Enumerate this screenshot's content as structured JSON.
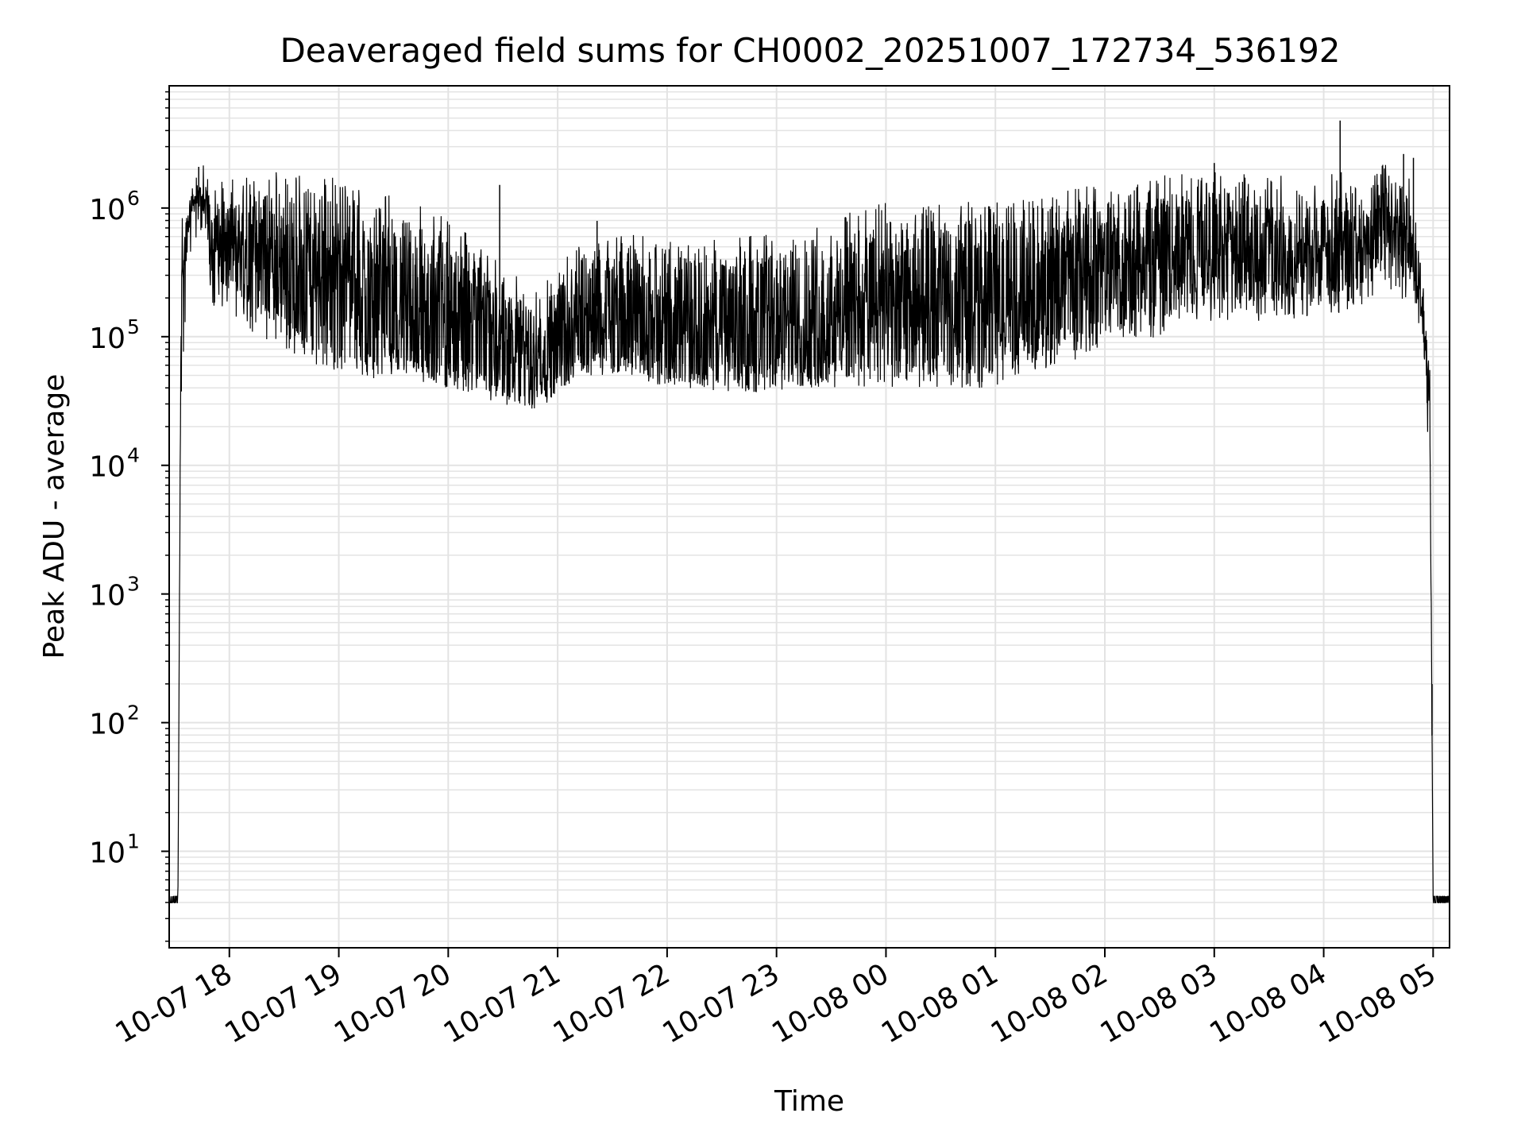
{
  "chart_data": {
    "type": "line",
    "title": "Deaveraged field sums for CH0002_20251007_172734_536192",
    "xlabel": "Time",
    "ylabel": "Peak ADU - average",
    "yscale": "log",
    "ylim_exp": [
      0.25,
      6.95
    ],
    "x_range_hours": [
      17.45,
      29.15
    ],
    "x_ticks": [
      {
        "label": "10-07 18",
        "hour": 18
      },
      {
        "label": "10-07 19",
        "hour": 19
      },
      {
        "label": "10-07 20",
        "hour": 20
      },
      {
        "label": "10-07 21",
        "hour": 21
      },
      {
        "label": "10-07 22",
        "hour": 22
      },
      {
        "label": "10-07 23",
        "hour": 23
      },
      {
        "label": "10-08 00",
        "hour": 24
      },
      {
        "label": "10-08 01",
        "hour": 25
      },
      {
        "label": "10-08 02",
        "hour": 26
      },
      {
        "label": "10-08 03",
        "hour": 27
      },
      {
        "label": "10-08 04",
        "hour": 28
      },
      {
        "label": "10-08 05",
        "hour": 29
      }
    ],
    "y_ticks": [
      {
        "base": "10",
        "exp": "1",
        "value": 1
      },
      {
        "base": "10",
        "exp": "2",
        "value": 2
      },
      {
        "base": "10",
        "exp": "3",
        "value": 3
      },
      {
        "base": "10",
        "exp": "4",
        "value": 4
      },
      {
        "base": "10",
        "exp": "5",
        "value": 5
      },
      {
        "base": "10",
        "exp": "6",
        "value": 6
      }
    ],
    "grid": true,
    "line_color": "#000000",
    "grid_color": "#e3e3e3",
    "series": [
      {
        "name": "field sums",
        "envelope_log10": [
          {
            "hour": 17.45,
            "floor": 0.6,
            "mean": 0.6,
            "spread": 0.0
          },
          {
            "hour": 17.53,
            "floor": 0.6,
            "mean": 0.6,
            "spread": 0.0
          },
          {
            "hour": 17.56,
            "floor": 4.5,
            "mean": 5.5,
            "spread": 0.3
          },
          {
            "hour": 17.65,
            "floor": 5.6,
            "mean": 6.05,
            "spread": 0.1
          },
          {
            "hour": 17.75,
            "floor": 5.8,
            "mean": 6.1,
            "spread": 0.1
          },
          {
            "hour": 17.85,
            "floor": 5.2,
            "mean": 5.75,
            "spread": 0.3
          },
          {
            "hour": 18.5,
            "floor": 4.9,
            "mean": 5.6,
            "spread": 0.55
          },
          {
            "hour": 19.0,
            "floor": 4.7,
            "mean": 5.5,
            "spread": 0.6
          },
          {
            "hour": 20.0,
            "floor": 4.6,
            "mean": 5.2,
            "spread": 0.6
          },
          {
            "hour": 20.8,
            "floor": 4.45,
            "mean": 4.8,
            "spread": 0.4
          },
          {
            "hour": 21.3,
            "floor": 4.7,
            "mean": 5.25,
            "spread": 0.45
          },
          {
            "hour": 22.0,
            "floor": 4.6,
            "mean": 5.1,
            "spread": 0.5
          },
          {
            "hour": 23.0,
            "floor": 4.6,
            "mean": 5.1,
            "spread": 0.55
          },
          {
            "hour": 24.0,
            "floor": 4.6,
            "mean": 5.3,
            "spread": 0.6
          },
          {
            "hour": 25.0,
            "floor": 4.6,
            "mean": 5.3,
            "spread": 0.6
          },
          {
            "hour": 26.0,
            "floor": 4.9,
            "mean": 5.55,
            "spread": 0.5
          },
          {
            "hour": 27.0,
            "floor": 5.1,
            "mean": 5.7,
            "spread": 0.45
          },
          {
            "hour": 28.0,
            "floor": 5.15,
            "mean": 5.7,
            "spread": 0.4
          },
          {
            "hour": 28.75,
            "floor": 5.3,
            "mean": 5.9,
            "spread": 0.35
          },
          {
            "hour": 28.88,
            "floor": 5.0,
            "mean": 5.4,
            "spread": 0.2
          },
          {
            "hour": 28.97,
            "floor": 4.0,
            "mean": 4.5,
            "spread": 0.2
          },
          {
            "hour": 29.0,
            "floor": 0.6,
            "mean": 0.6,
            "spread": 0.0
          },
          {
            "hour": 29.15,
            "floor": 0.6,
            "mean": 0.6,
            "spread": 0.0
          }
        ],
        "spikes": [
          {
            "hour": 17.72,
            "log10": 6.32
          },
          {
            "hour": 19.1,
            "log10": 6.02
          },
          {
            "hour": 20.47,
            "log10": 6.18
          },
          {
            "hour": 21.36,
            "log10": 5.9
          },
          {
            "hour": 23.63,
            "log10": 5.93
          },
          {
            "hour": 27.0,
            "log10": 6.35
          },
          {
            "hour": 28.15,
            "log10": 6.68
          },
          {
            "hour": 28.73,
            "log10": 6.42
          },
          {
            "hour": 28.82,
            "log10": 6.39
          },
          {
            "hour": 28.99,
            "log10": 2.3
          }
        ]
      }
    ]
  }
}
